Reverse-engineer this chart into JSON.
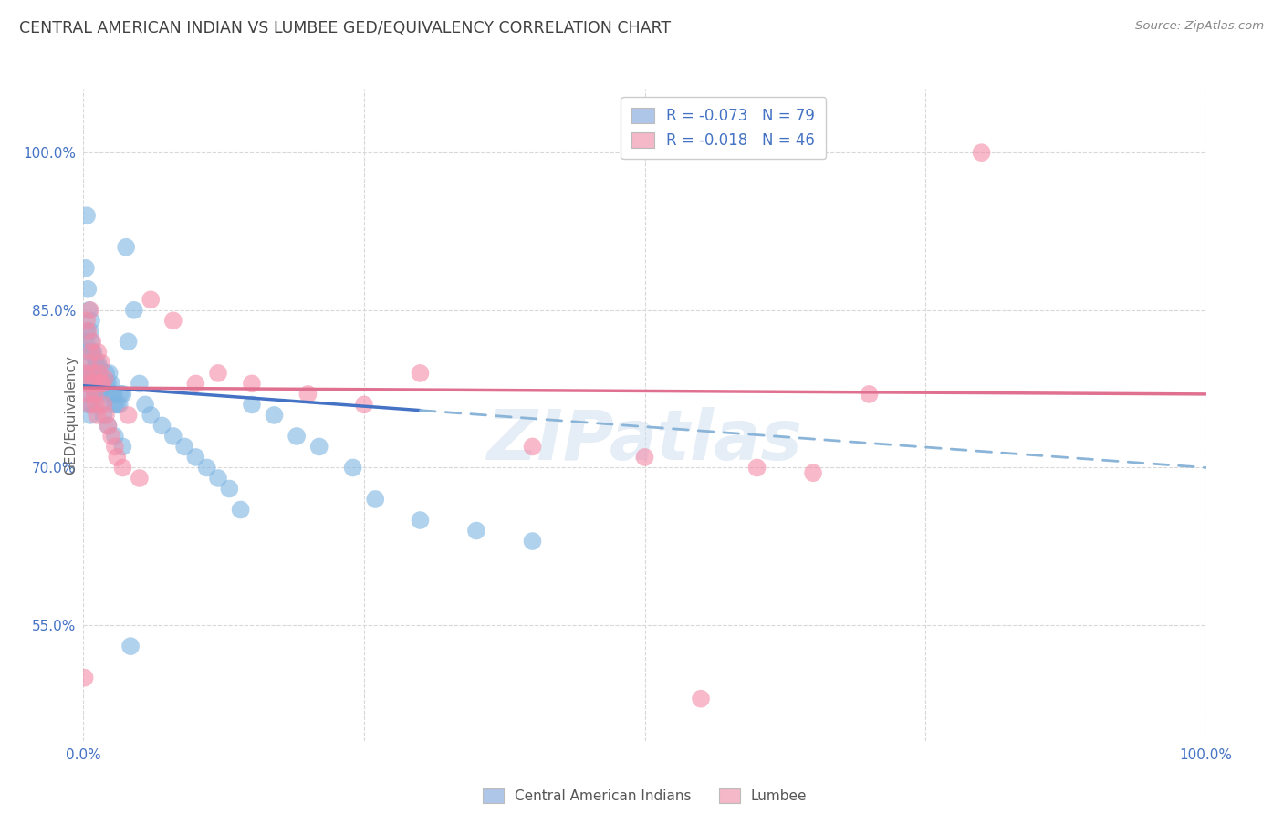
{
  "title": "CENTRAL AMERICAN INDIAN VS LUMBEE GED/EQUIVALENCY CORRELATION CHART",
  "source": "Source: ZipAtlas.com",
  "ylabel": "GED/Equivalency",
  "ytick_labels": [
    "100.0%",
    "85.0%",
    "70.0%",
    "55.0%"
  ],
  "ytick_values": [
    1.0,
    0.85,
    0.7,
    0.55
  ],
  "legend_entries": [
    {
      "label": "R = -0.073   N = 79",
      "color": "#aec6e8"
    },
    {
      "label": "R = -0.018   N = 46",
      "color": "#f4b8c8"
    }
  ],
  "legend_bottom": [
    "Central American Indians",
    "Lumbee"
  ],
  "blue_color": "#7eb4e2",
  "pink_color": "#f48ca8",
  "trend_blue_solid_color": "#4472c4",
  "trend_blue_dash_color": "#8ab4d8",
  "trend_pink_color": "#e07090",
  "watermark_color": "#c8d8e8",
  "background_color": "#ffffff",
  "grid_color": "#d8d8d8",
  "axis_label_color": "#4472c4",
  "title_color": "#404040",
  "blue_scatter_x": [
    0.001,
    0.002,
    0.003,
    0.003,
    0.004,
    0.004,
    0.005,
    0.005,
    0.006,
    0.006,
    0.007,
    0.007,
    0.008,
    0.008,
    0.009,
    0.009,
    0.01,
    0.01,
    0.011,
    0.012,
    0.013,
    0.014,
    0.015,
    0.015,
    0.016,
    0.017,
    0.018,
    0.019,
    0.02,
    0.02,
    0.022,
    0.023,
    0.025,
    0.026,
    0.027,
    0.028,
    0.03,
    0.032,
    0.033,
    0.035,
    0.038,
    0.04,
    0.045,
    0.05,
    0.055,
    0.06,
    0.07,
    0.08,
    0.09,
    0.1,
    0.11,
    0.12,
    0.13,
    0.14,
    0.15,
    0.17,
    0.19,
    0.21,
    0.24,
    0.26,
    0.3,
    0.35,
    0.4,
    0.002,
    0.003,
    0.004,
    0.005,
    0.006,
    0.007,
    0.008,
    0.009,
    0.01,
    0.012,
    0.015,
    0.018,
    0.022,
    0.028,
    0.035,
    0.042
  ],
  "blue_scatter_y": [
    0.78,
    0.82,
    0.83,
    0.79,
    0.81,
    0.77,
    0.8,
    0.76,
    0.79,
    0.75,
    0.78,
    0.82,
    0.78,
    0.76,
    0.775,
    0.79,
    0.775,
    0.785,
    0.8,
    0.79,
    0.8,
    0.795,
    0.785,
    0.78,
    0.775,
    0.78,
    0.775,
    0.77,
    0.78,
    0.79,
    0.78,
    0.79,
    0.78,
    0.77,
    0.77,
    0.76,
    0.76,
    0.76,
    0.77,
    0.77,
    0.91,
    0.82,
    0.85,
    0.78,
    0.76,
    0.75,
    0.74,
    0.73,
    0.72,
    0.71,
    0.7,
    0.69,
    0.68,
    0.66,
    0.76,
    0.75,
    0.73,
    0.72,
    0.7,
    0.67,
    0.65,
    0.64,
    0.63,
    0.89,
    0.94,
    0.87,
    0.85,
    0.83,
    0.84,
    0.81,
    0.81,
    0.77,
    0.78,
    0.76,
    0.75,
    0.74,
    0.73,
    0.72,
    0.53
  ],
  "pink_scatter_x": [
    0.001,
    0.002,
    0.003,
    0.004,
    0.005,
    0.006,
    0.007,
    0.008,
    0.009,
    0.01,
    0.011,
    0.012,
    0.014,
    0.015,
    0.017,
    0.018,
    0.02,
    0.022,
    0.025,
    0.028,
    0.03,
    0.035,
    0.04,
    0.05,
    0.06,
    0.08,
    0.1,
    0.12,
    0.15,
    0.2,
    0.25,
    0.3,
    0.4,
    0.5,
    0.6,
    0.65,
    0.7,
    0.8,
    0.003,
    0.004,
    0.006,
    0.008,
    0.013,
    0.016,
    0.019,
    0.55
  ],
  "pink_scatter_y": [
    0.5,
    0.79,
    0.78,
    0.8,
    0.77,
    0.76,
    0.81,
    0.79,
    0.78,
    0.77,
    0.76,
    0.75,
    0.79,
    0.78,
    0.78,
    0.76,
    0.75,
    0.74,
    0.73,
    0.72,
    0.71,
    0.7,
    0.75,
    0.69,
    0.86,
    0.84,
    0.78,
    0.79,
    0.78,
    0.77,
    0.76,
    0.79,
    0.72,
    0.71,
    0.7,
    0.695,
    0.77,
    1.0,
    0.84,
    0.83,
    0.85,
    0.82,
    0.81,
    0.8,
    0.785,
    0.48
  ],
  "xmin": 0.0,
  "xmax": 1.0,
  "ymin": 0.44,
  "ymax": 1.06,
  "trend_blue_x0": 0.0,
  "trend_blue_x1": 1.0,
  "trend_blue_y0": 0.778,
  "trend_blue_y1": 0.7,
  "trend_blue_solid_end": 0.3,
  "trend_pink_x0": 0.0,
  "trend_pink_x1": 1.0,
  "trend_pink_y0": 0.776,
  "trend_pink_y1": 0.77
}
